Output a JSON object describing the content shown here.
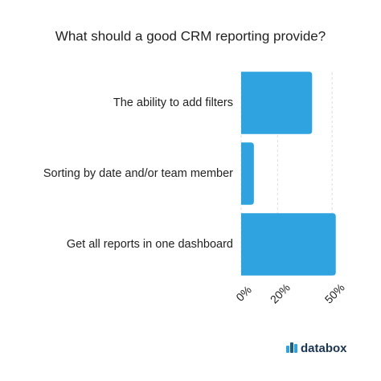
{
  "chart_data": {
    "type": "hbar",
    "title": "What should a good CRM reporting provide?",
    "categories": [
      "The ability to add filters",
      "Sorting by date and/or team member",
      "Get all reports in one dashboard"
    ],
    "values": [
      39,
      7,
      52
    ],
    "color": "#2ea3e0",
    "xlim": [
      0,
      53
    ],
    "xticks": [
      {
        "value": 0,
        "label": "0%"
      },
      {
        "value": 20,
        "label": "20%"
      },
      {
        "value": 50,
        "label": "50%"
      }
    ],
    "grid": true
  },
  "footer": {
    "brand": "databox"
  }
}
